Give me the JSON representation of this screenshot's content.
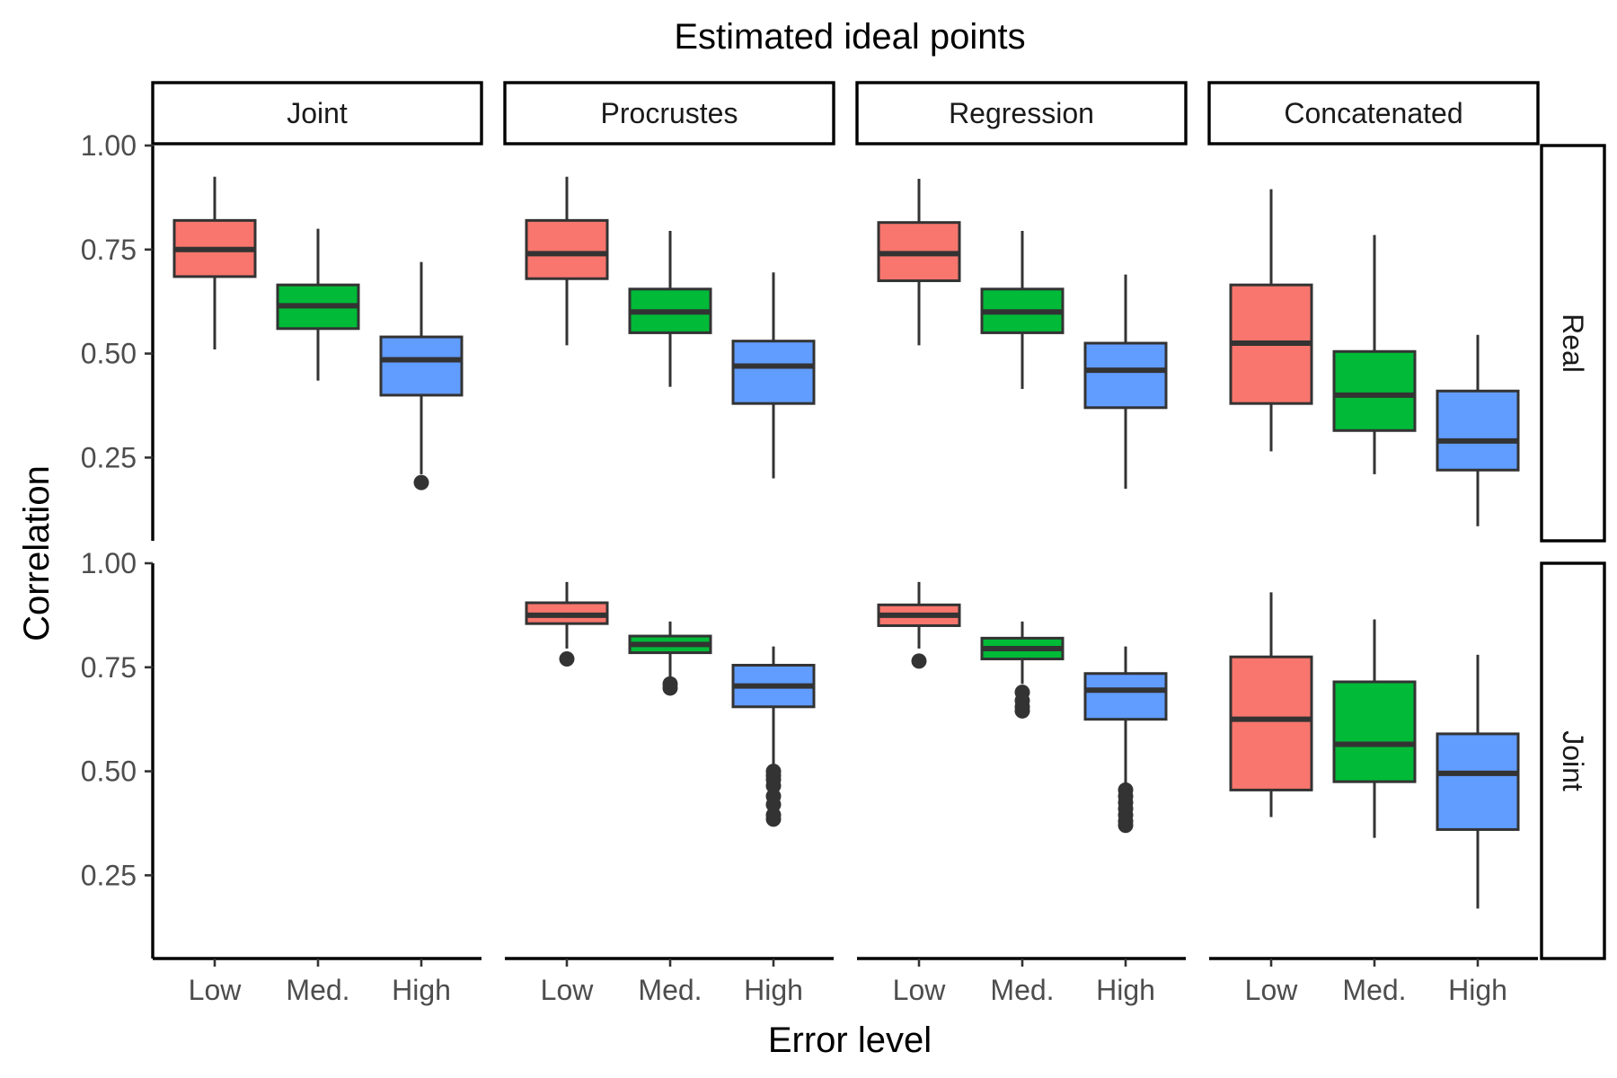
{
  "chart_data": {
    "type": "boxplot",
    "title": "Estimated ideal points",
    "xlabel": "Error level",
    "ylabel": "Correlation",
    "columns": [
      "Joint",
      "Procrustes",
      "Regression",
      "Concatenated"
    ],
    "rows": [
      "Real",
      "Joint"
    ],
    "categories": [
      "Low",
      "Med.",
      "High"
    ],
    "ylim": [
      0.05,
      1.0
    ],
    "yticks": [
      1.0,
      0.75,
      0.5,
      0.25
    ],
    "ytick_labels": [
      "1.00",
      "0.75",
      "0.50",
      "0.25"
    ],
    "colors": {
      "Low": "#F8766D",
      "Med.": "#00BA38",
      "High": "#619CFF"
    },
    "grid": false,
    "legend": "none",
    "panels": [
      {
        "row": "Real",
        "column": "Joint",
        "boxes": [
          {
            "category": "Low",
            "whisker_low": 0.51,
            "q1": 0.685,
            "median": 0.75,
            "q3": 0.82,
            "whisker_high": 0.925,
            "outliers": []
          },
          {
            "category": "Med.",
            "whisker_low": 0.435,
            "q1": 0.56,
            "median": 0.615,
            "q3": 0.665,
            "whisker_high": 0.8,
            "outliers": []
          },
          {
            "category": "High",
            "whisker_low": 0.21,
            "q1": 0.4,
            "median": 0.485,
            "q3": 0.54,
            "whisker_high": 0.72,
            "outliers": [
              0.19
            ]
          }
        ]
      },
      {
        "row": "Real",
        "column": "Procrustes",
        "boxes": [
          {
            "category": "Low",
            "whisker_low": 0.52,
            "q1": 0.68,
            "median": 0.74,
            "q3": 0.82,
            "whisker_high": 0.925,
            "outliers": []
          },
          {
            "category": "Med.",
            "whisker_low": 0.42,
            "q1": 0.55,
            "median": 0.6,
            "q3": 0.655,
            "whisker_high": 0.795,
            "outliers": []
          },
          {
            "category": "High",
            "whisker_low": 0.2,
            "q1": 0.38,
            "median": 0.47,
            "q3": 0.53,
            "whisker_high": 0.695,
            "outliers": []
          }
        ]
      },
      {
        "row": "Real",
        "column": "Regression",
        "boxes": [
          {
            "category": "Low",
            "whisker_low": 0.52,
            "q1": 0.675,
            "median": 0.74,
            "q3": 0.815,
            "whisker_high": 0.92,
            "outliers": []
          },
          {
            "category": "Med.",
            "whisker_low": 0.415,
            "q1": 0.55,
            "median": 0.6,
            "q3": 0.655,
            "whisker_high": 0.795,
            "outliers": []
          },
          {
            "category": "High",
            "whisker_low": 0.175,
            "q1": 0.37,
            "median": 0.46,
            "q3": 0.525,
            "whisker_high": 0.69,
            "outliers": []
          }
        ]
      },
      {
        "row": "Real",
        "column": "Concatenated",
        "boxes": [
          {
            "category": "Low",
            "whisker_low": 0.265,
            "q1": 0.38,
            "median": 0.525,
            "q3": 0.665,
            "whisker_high": 0.895,
            "outliers": []
          },
          {
            "category": "Med.",
            "whisker_low": 0.21,
            "q1": 0.315,
            "median": 0.4,
            "q3": 0.505,
            "whisker_high": 0.785,
            "outliers": []
          },
          {
            "category": "High",
            "whisker_low": 0.085,
            "q1": 0.22,
            "median": 0.29,
            "q3": 0.41,
            "whisker_high": 0.545,
            "outliers": []
          }
        ]
      },
      {
        "row": "Joint",
        "column": "Joint",
        "boxes": []
      },
      {
        "row": "Joint",
        "column": "Procrustes",
        "boxes": [
          {
            "category": "Low",
            "whisker_low": 0.795,
            "q1": 0.855,
            "median": 0.875,
            "q3": 0.905,
            "whisker_high": 0.955,
            "outliers": [
              0.77
            ]
          },
          {
            "category": "Med.",
            "whisker_low": 0.725,
            "q1": 0.785,
            "median": 0.805,
            "q3": 0.825,
            "whisker_high": 0.86,
            "outliers": [
              0.71,
              0.7
            ]
          },
          {
            "category": "High",
            "whisker_low": 0.51,
            "q1": 0.655,
            "median": 0.705,
            "q3": 0.755,
            "whisker_high": 0.8,
            "outliers": [
              0.5,
              0.49,
              0.48,
              0.465,
              0.44,
              0.42,
              0.395,
              0.385
            ]
          }
        ]
      },
      {
        "row": "Joint",
        "column": "Regression",
        "boxes": [
          {
            "category": "Low",
            "whisker_low": 0.795,
            "q1": 0.85,
            "median": 0.875,
            "q3": 0.9,
            "whisker_high": 0.955,
            "outliers": [
              0.765
            ]
          },
          {
            "category": "Med.",
            "whisker_low": 0.71,
            "q1": 0.77,
            "median": 0.795,
            "q3": 0.82,
            "whisker_high": 0.86,
            "outliers": [
              0.69,
              0.67,
              0.655,
              0.645
            ]
          },
          {
            "category": "High",
            "whisker_low": 0.465,
            "q1": 0.625,
            "median": 0.695,
            "q3": 0.735,
            "whisker_high": 0.8,
            "outliers": [
              0.455,
              0.44,
              0.425,
              0.41,
              0.395,
              0.38,
              0.37
            ]
          }
        ]
      },
      {
        "row": "Joint",
        "column": "Concatenated",
        "boxes": [
          {
            "category": "Low",
            "whisker_low": 0.39,
            "q1": 0.455,
            "median": 0.625,
            "q3": 0.775,
            "whisker_high": 0.93,
            "outliers": []
          },
          {
            "category": "Med.",
            "whisker_low": 0.34,
            "q1": 0.475,
            "median": 0.565,
            "q3": 0.715,
            "whisker_high": 0.865,
            "outliers": []
          },
          {
            "category": "High",
            "whisker_low": 0.17,
            "q1": 0.36,
            "median": 0.495,
            "q3": 0.59,
            "whisker_high": 0.78,
            "outliers": []
          }
        ]
      }
    ]
  }
}
